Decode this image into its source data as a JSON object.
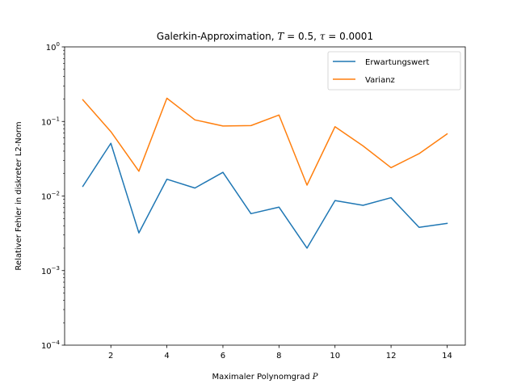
{
  "chart_data": {
    "type": "line",
    "title": {
      "prefix": "Galerkin-Approximation, ",
      "T_symbol": "T",
      "T_value": " = 0.5, ",
      "tau_symbol": "τ",
      "tau_value": " = 0.0001"
    },
    "xlabel": {
      "text": "Maximaler Polynomgrad ",
      "symbol": "P"
    },
    "ylabel": "Relativer Fehler in diskreter L2-Norm",
    "xlim": [
      0.35,
      14.65
    ],
    "ylim": [
      0.0001,
      1
    ],
    "yscale": "log",
    "x_ticks": [
      2,
      4,
      6,
      8,
      10,
      12,
      14
    ],
    "y_ticks": [
      {
        "value": 0.0001,
        "base": "10",
        "exp": "−4"
      },
      {
        "value": 0.001,
        "base": "10",
        "exp": "−3"
      },
      {
        "value": 0.01,
        "base": "10",
        "exp": "−2"
      },
      {
        "value": 0.1,
        "base": "10",
        "exp": "−1"
      },
      {
        "value": 1,
        "base": "10",
        "exp": "0"
      }
    ],
    "legend_position": "top-right",
    "grid": false,
    "x": [
      1,
      2,
      3,
      4,
      5,
      6,
      7,
      8,
      9,
      10,
      11,
      12,
      13,
      14
    ],
    "series": [
      {
        "name": "Erwartungswert",
        "color": "#1f77b4",
        "values": [
          0.0135,
          0.051,
          0.0032,
          0.0168,
          0.0128,
          0.0208,
          0.0058,
          0.0071,
          0.002,
          0.0087,
          0.0075,
          0.0095,
          0.0038,
          0.0043
        ]
      },
      {
        "name": "Varianz",
        "color": "#ff7f0e",
        "values": [
          0.195,
          0.073,
          0.0215,
          0.205,
          0.105,
          0.087,
          0.088,
          0.122,
          0.014,
          0.085,
          0.047,
          0.024,
          0.037,
          0.068
        ]
      }
    ]
  }
}
